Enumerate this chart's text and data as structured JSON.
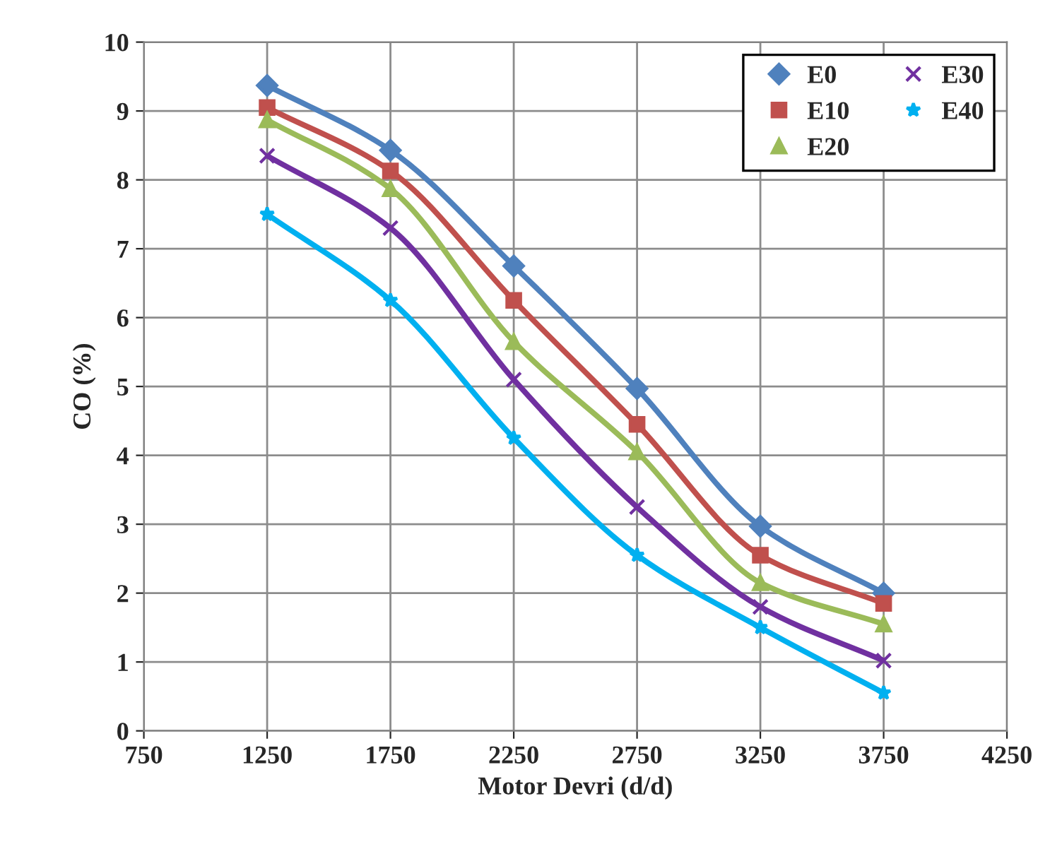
{
  "chart_data": {
    "type": "line",
    "xlabel": "Motor Devri (d/d)",
    "ylabel": "CO (%)",
    "x": [
      1250,
      1750,
      2250,
      2750,
      3250,
      3750
    ],
    "series": [
      {
        "name": "E0",
        "color": "#4f81bd",
        "marker": "diamond",
        "values": [
          9.37,
          8.43,
          6.75,
          4.97,
          2.97,
          2.0
        ]
      },
      {
        "name": "E10",
        "color": "#c0504d",
        "marker": "square",
        "values": [
          9.05,
          8.13,
          6.25,
          4.45,
          2.55,
          1.85
        ]
      },
      {
        "name": "E20",
        "color": "#9bbb59",
        "marker": "triangle",
        "values": [
          8.87,
          7.87,
          5.65,
          4.05,
          2.15,
          1.55
        ]
      },
      {
        "name": "E30",
        "color": "#7030a0",
        "marker": "cross",
        "values": [
          8.35,
          7.3,
          5.1,
          3.25,
          1.8,
          1.02
        ]
      },
      {
        "name": "E40",
        "color": "#00b0f0",
        "marker": "star",
        "values": [
          7.5,
          6.25,
          4.25,
          2.55,
          1.5,
          0.55
        ]
      }
    ],
    "xlim": [
      750,
      4250
    ],
    "xticks": [
      750,
      1250,
      1750,
      2250,
      2750,
      3250,
      3750,
      4250
    ],
    "ylim": [
      0,
      10
    ],
    "yticks": [
      0,
      1,
      2,
      3,
      4,
      5,
      6,
      7,
      8,
      9,
      10
    ],
    "grid": true,
    "legend": "top right",
    "line_style": "solid"
  }
}
